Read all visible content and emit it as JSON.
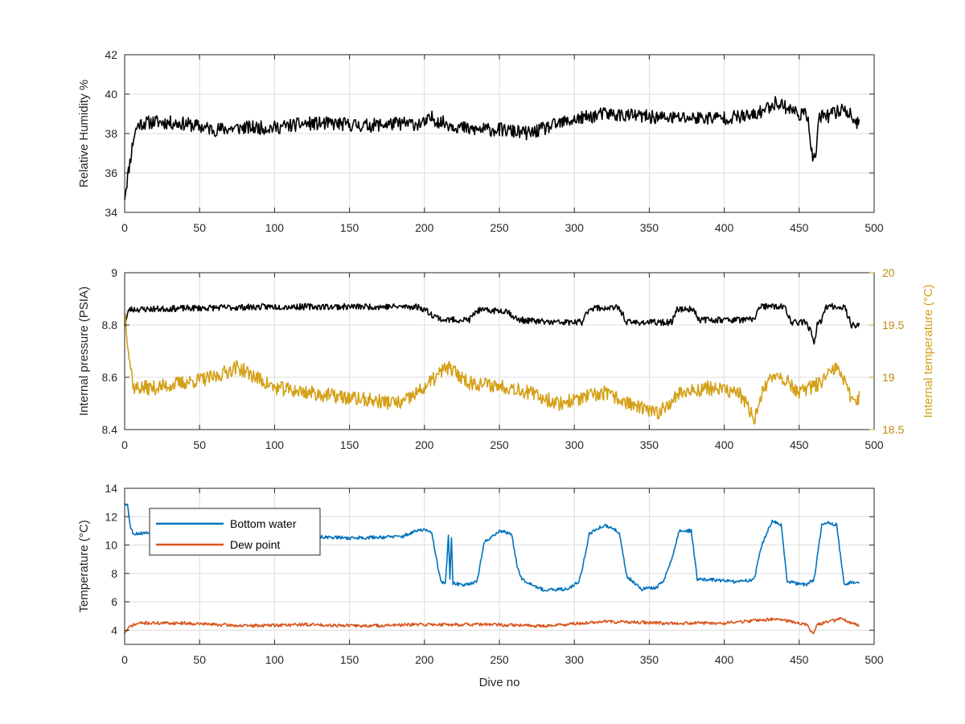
{
  "colors": {
    "black": "#000000",
    "blue": "#0072BD",
    "orange": "#D95319",
    "gold": "#D4A017",
    "axis": "#262626",
    "grid": "#dcdcdc"
  },
  "chart_data": [
    {
      "type": "line",
      "xlabel": "",
      "ylabel": "Relative Humidity %",
      "xlim": [
        0,
        500
      ],
      "ylim": [
        34,
        42
      ],
      "xticks": [
        "0",
        "50",
        "100",
        "150",
        "200",
        "250",
        "300",
        "350",
        "400",
        "450",
        "500"
      ],
      "yticks": [
        "34",
        "36",
        "38",
        "40",
        "42"
      ],
      "grid": true,
      "series": [
        {
          "name": "",
          "color": "#000000",
          "points": [
            [
              0,
              34.8
            ],
            [
              2,
              35.8
            ],
            [
              4,
              36.8
            ],
            [
              6,
              37.8
            ],
            [
              8,
              38.3
            ],
            [
              10,
              38.5
            ],
            [
              20,
              38.6
            ],
            [
              40,
              38.5
            ],
            [
              60,
              38.2
            ],
            [
              80,
              38.3
            ],
            [
              100,
              38.3
            ],
            [
              120,
              38.5
            ],
            [
              140,
              38.5
            ],
            [
              160,
              38.4
            ],
            [
              180,
              38.5
            ],
            [
              200,
              38.5
            ],
            [
              205,
              38.8
            ],
            [
              210,
              38.6
            ],
            [
              230,
              38.2
            ],
            [
              250,
              38.2
            ],
            [
              270,
              38.0
            ],
            [
              290,
              38.5
            ],
            [
              300,
              38.7
            ],
            [
              320,
              39.0
            ],
            [
              340,
              38.9
            ],
            [
              360,
              38.8
            ],
            [
              380,
              38.8
            ],
            [
              400,
              38.8
            ],
            [
              420,
              38.9
            ],
            [
              435,
              39.6
            ],
            [
              450,
              39.0
            ],
            [
              456,
              38.9
            ],
            [
              459,
              36.6
            ],
            [
              461,
              36.8
            ],
            [
              463,
              38.8
            ],
            [
              470,
              38.9
            ],
            [
              480,
              39.3
            ],
            [
              490,
              38.4
            ]
          ],
          "noise": 0.35,
          "seed": 11
        }
      ]
    },
    {
      "type": "line",
      "xlabel": "",
      "ylabel": "Internal pressure (PSIA)",
      "ylabel_right": "Internal temperature (°C)",
      "xlim": [
        0,
        500
      ],
      "ylim": [
        8.4,
        9
      ],
      "ylim_right": [
        18.5,
        20
      ],
      "xticks": [
        "0",
        "50",
        "100",
        "150",
        "200",
        "250",
        "300",
        "350",
        "400",
        "450",
        "500"
      ],
      "yticks": [
        "8.4",
        "8.6",
        "8.8",
        "9"
      ],
      "yticks_right": [
        "18.5",
        "19",
        "19.5",
        "20"
      ],
      "grid": true,
      "series": [
        {
          "name": "",
          "axis": "left",
          "color": "#000000",
          "points": [
            [
              0,
              8.8
            ],
            [
              3,
              8.86
            ],
            [
              10,
              8.86
            ],
            [
              50,
              8.865
            ],
            [
              100,
              8.87
            ],
            [
              150,
              8.87
            ],
            [
              195,
              8.87
            ],
            [
              200,
              8.86
            ],
            [
              205,
              8.84
            ],
            [
              212,
              8.82
            ],
            [
              230,
              8.82
            ],
            [
              235,
              8.855
            ],
            [
              255,
              8.855
            ],
            [
              262,
              8.82
            ],
            [
              285,
              8.81
            ],
            [
              305,
              8.81
            ],
            [
              310,
              8.865
            ],
            [
              330,
              8.865
            ],
            [
              335,
              8.81
            ],
            [
              365,
              8.81
            ],
            [
              368,
              8.86
            ],
            [
              380,
              8.86
            ],
            [
              383,
              8.82
            ],
            [
              420,
              8.82
            ],
            [
              423,
              8.87
            ],
            [
              440,
              8.87
            ],
            [
              445,
              8.81
            ],
            [
              455,
              8.81
            ],
            [
              458,
              8.77
            ],
            [
              460,
              8.72
            ],
            [
              462,
              8.8
            ],
            [
              465,
              8.82
            ],
            [
              468,
              8.87
            ],
            [
              480,
              8.87
            ],
            [
              485,
              8.8
            ],
            [
              490,
              8.8
            ]
          ],
          "noise": 0.012,
          "seed": 23
        },
        {
          "name": "",
          "axis": "right",
          "color": "#D4A017",
          "points": [
            [
              0,
              19.65
            ],
            [
              3,
              19.2
            ],
            [
              6,
              18.9
            ],
            [
              20,
              18.9
            ],
            [
              40,
              18.95
            ],
            [
              60,
              19.0
            ],
            [
              75,
              19.1
            ],
            [
              100,
              18.9
            ],
            [
              150,
              18.8
            ],
            [
              185,
              18.75
            ],
            [
              200,
              18.9
            ],
            [
              215,
              19.1
            ],
            [
              230,
              18.95
            ],
            [
              260,
              18.9
            ],
            [
              290,
              18.75
            ],
            [
              320,
              18.85
            ],
            [
              345,
              18.7
            ],
            [
              355,
              18.65
            ],
            [
              370,
              18.85
            ],
            [
              390,
              18.9
            ],
            [
              410,
              18.85
            ],
            [
              420,
              18.6
            ],
            [
              425,
              18.85
            ],
            [
              435,
              19.05
            ],
            [
              450,
              18.85
            ],
            [
              465,
              18.95
            ],
            [
              475,
              19.1
            ],
            [
              485,
              18.8
            ],
            [
              490,
              18.8
            ]
          ],
          "noise": 0.07,
          "seed": 37
        }
      ]
    },
    {
      "type": "line",
      "xlabel": "Dive no",
      "ylabel": "Temperature (°C)",
      "xlim": [
        0,
        500
      ],
      "ylim": [
        3,
        14
      ],
      "xticks": [
        "0",
        "50",
        "100",
        "150",
        "200",
        "250",
        "300",
        "350",
        "400",
        "450",
        "500"
      ],
      "yticks": [
        "4",
        "6",
        "8",
        "10",
        "12",
        "14"
      ],
      "grid": true,
      "legend": "top-left",
      "series": [
        {
          "name": "Bottom water",
          "color": "#0072BD",
          "points": [
            [
              0,
              13.0
            ],
            [
              2,
              12.8
            ],
            [
              4,
              11.2
            ],
            [
              6,
              10.8
            ],
            [
              20,
              10.9
            ],
            [
              50,
              10.8
            ],
            [
              100,
              10.7
            ],
            [
              150,
              10.5
            ],
            [
              185,
              10.6
            ],
            [
              195,
              11.0
            ],
            [
              200,
              11.1
            ],
            [
              205,
              10.8
            ],
            [
              208,
              9.0
            ],
            [
              211,
              7.4
            ],
            [
              214,
              7.3
            ],
            [
              216,
              10.6
            ],
            [
              217,
              7.6
            ],
            [
              218,
              10.5
            ],
            [
              219,
              7.3
            ],
            [
              225,
              7.2
            ],
            [
              235,
              7.4
            ],
            [
              240,
              10.2
            ],
            [
              250,
              11.0
            ],
            [
              258,
              10.8
            ],
            [
              262,
              8.5
            ],
            [
              265,
              7.6
            ],
            [
              280,
              6.8
            ],
            [
              295,
              6.9
            ],
            [
              303,
              7.4
            ],
            [
              305,
              8.2
            ],
            [
              310,
              10.8
            ],
            [
              320,
              11.4
            ],
            [
              330,
              10.9
            ],
            [
              335,
              7.8
            ],
            [
              345,
              6.9
            ],
            [
              355,
              7.0
            ],
            [
              360,
              7.6
            ],
            [
              365,
              9.0
            ],
            [
              370,
              11.0
            ],
            [
              378,
              11.0
            ],
            [
              382,
              7.6
            ],
            [
              400,
              7.5
            ],
            [
              410,
              7.4
            ],
            [
              420,
              7.6
            ],
            [
              425,
              10.0
            ],
            [
              432,
              11.7
            ],
            [
              438,
              11.4
            ],
            [
              442,
              7.4
            ],
            [
              455,
              7.2
            ],
            [
              460,
              7.6
            ],
            [
              465,
              11.4
            ],
            [
              470,
              11.6
            ],
            [
              475,
              11.4
            ],
            [
              480,
              7.2
            ],
            [
              485,
              7.4
            ],
            [
              490,
              7.3
            ]
          ],
          "noise": 0.12,
          "seed": 53
        },
        {
          "name": "Dew point",
          "color": "#D95319",
          "points": [
            [
              0,
              3.8
            ],
            [
              4,
              4.3
            ],
            [
              10,
              4.5
            ],
            [
              40,
              4.5
            ],
            [
              80,
              4.3
            ],
            [
              120,
              4.4
            ],
            [
              160,
              4.3
            ],
            [
              200,
              4.4
            ],
            [
              240,
              4.4
            ],
            [
              280,
              4.3
            ],
            [
              320,
              4.6
            ],
            [
              360,
              4.5
            ],
            [
              400,
              4.5
            ],
            [
              435,
              4.8
            ],
            [
              455,
              4.4
            ],
            [
              459,
              3.7
            ],
            [
              462,
              4.4
            ],
            [
              478,
              4.8
            ],
            [
              490,
              4.3
            ]
          ],
          "noise": 0.11,
          "seed": 71
        }
      ]
    }
  ]
}
